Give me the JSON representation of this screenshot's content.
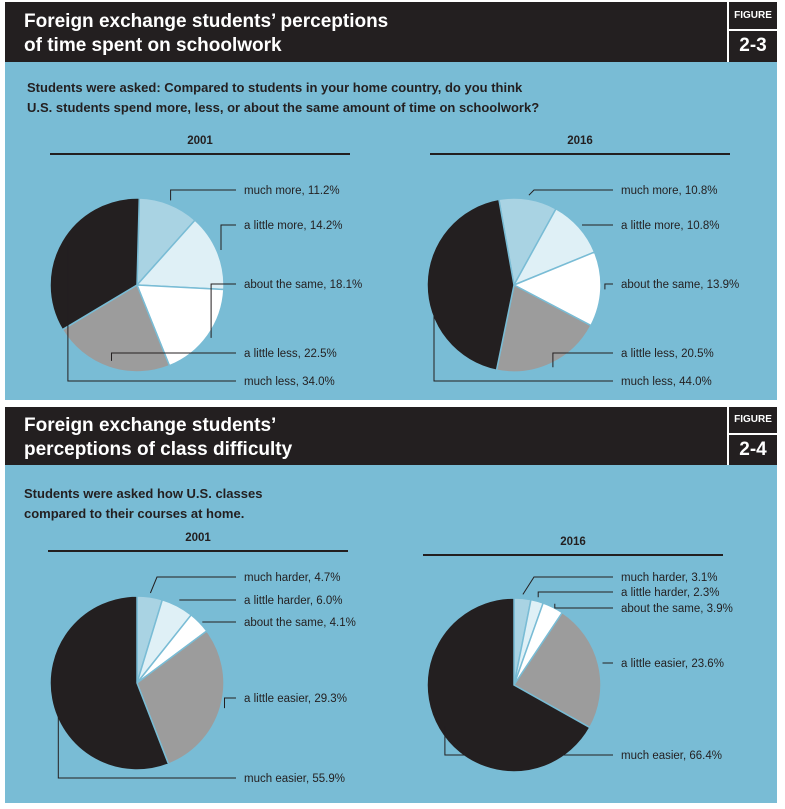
{
  "fig23": {
    "title": "Foreign exchange students’ perceptions\nof time spent on schoolwork",
    "figure_label": "FIGURE",
    "figure_number": "2-3",
    "question": "Students were asked: Compared to students in your home country, do you think\nU.S. students spend more, less, or about the same amount of time on schoolwork?"
  },
  "fig24": {
    "title": "Foreign exchange students’\nperceptions of class difficulty",
    "figure_label": "FIGURE",
    "figure_number": "2-4",
    "question": "Students were asked how U.S. classes\ncompared to their courses at home."
  },
  "colors": {
    "panel_bg": "#79bcd5",
    "header_bg": "#231f20",
    "slice_1": "#a9d3e3",
    "slice_2": "#dff0f6",
    "slice_3": "#ffffff",
    "slice_4": "#9c9c9c",
    "slice_5": "#231f20"
  },
  "chart_data": [
    {
      "type": "pie",
      "title": "2001",
      "labels": [
        "much more",
        "a little more",
        "about the same",
        "a little less",
        "much less"
      ],
      "values": [
        11.2,
        14.2,
        18.1,
        22.5,
        34.0
      ],
      "label_text": [
        "much more, 11.2%",
        "a little more, 14.2%",
        "about the same, 18.1%",
        "a little less, 22.5%",
        "much less, 34.0%"
      ]
    },
    {
      "type": "pie",
      "title": "2016",
      "labels": [
        "much more",
        "a little more",
        "about the same",
        "a little less",
        "much less"
      ],
      "values": [
        10.8,
        10.8,
        13.9,
        20.5,
        44.0
      ],
      "label_text": [
        "much more, 10.8%",
        "a little more, 10.8%",
        "about the same, 13.9%",
        "a little less, 20.5%",
        "much less, 44.0%"
      ]
    },
    {
      "type": "pie",
      "title": "2001",
      "labels": [
        "much harder",
        "a little harder",
        "about the same",
        "a little easier",
        "much easier"
      ],
      "values": [
        4.7,
        6.0,
        4.1,
        29.3,
        55.9
      ],
      "label_text": [
        "much harder, 4.7%",
        "a little harder, 6.0%",
        "about the same, 4.1%",
        "a little easier, 29.3%",
        "much easier, 55.9%"
      ]
    },
    {
      "type": "pie",
      "title": "2016",
      "labels": [
        "much harder",
        "a little harder",
        "about the same",
        "a little easier",
        "much easier"
      ],
      "values": [
        3.1,
        2.3,
        3.9,
        23.6,
        66.4
      ],
      "label_text": [
        "much harder, 3.1%",
        "a little harder, 2.3%",
        "about the same, 3.9%",
        "a little easier, 23.6%",
        "much easier, 66.4%"
      ]
    }
  ]
}
